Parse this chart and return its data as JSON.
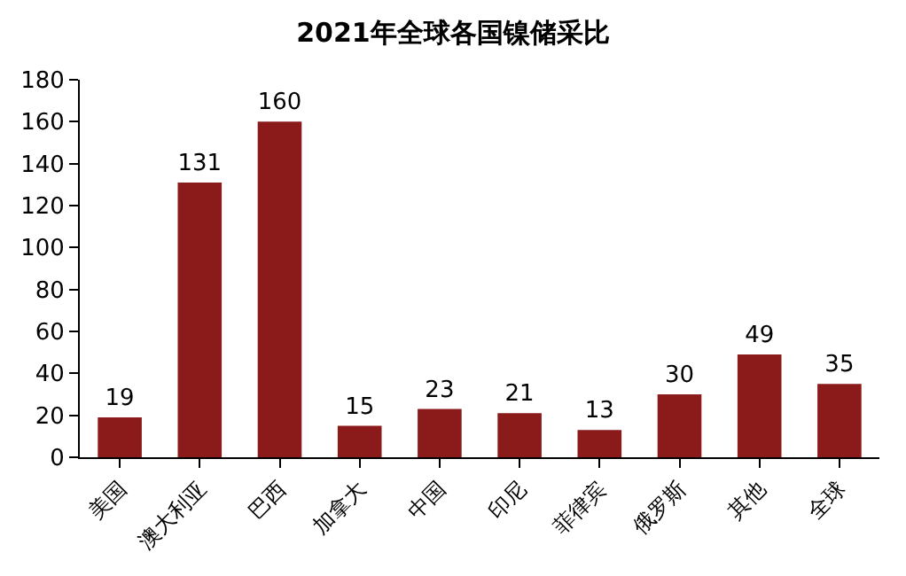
{
  "chart_data": {
    "type": "bar",
    "title": "2021年全球各国镍储采比",
    "categories": [
      "美国",
      "澳大利亚",
      "巴西",
      "加拿大",
      "中国",
      "印尼",
      "菲律宾",
      "俄罗斯",
      "其他",
      "全球"
    ],
    "values": [
      19,
      131,
      160,
      15,
      23,
      21,
      13,
      30,
      49,
      35
    ],
    "color": "#8b1a1a",
    "ylim": [
      0,
      180
    ],
    "yticks": [
      0,
      20,
      40,
      60,
      80,
      100,
      120,
      140,
      160,
      180
    ],
    "grid": false,
    "legend": false,
    "data_labels": true
  }
}
